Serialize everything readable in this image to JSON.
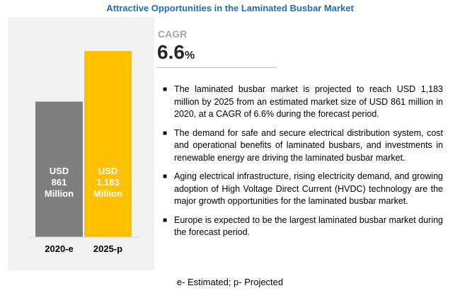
{
  "title": "Attractive Opportunities in the Laminated Busbar Market",
  "cagr": {
    "label": "CAGR",
    "value": "6.6",
    "unit": "%"
  },
  "bullets": [
    "The laminated busbar market is projected to reach USD 1,183 million by 2025 from an estimated market size of USD 861 million in 2020, at a CAGR of 6.6% during the forecast period.",
    "The demand for safe and secure electrical distribution system, cost and operational benefits of laminated busbars, and investments in renewable energy are driving the laminated busbar market.",
    "Aging electrical infrastructure, rising electricity demand, and growing adoption of High Voltage Direct Current (HVDC) technology are the major growth opportunities for the laminated busbar market.",
    "Europe is expected to be the largest laminated busbar market during the forecast period."
  ],
  "footnote": "e- Estimated; p- Projected",
  "colors": {
    "bar_2020": "#7f7f7f",
    "bar_2025": "#ffc000",
    "title": "#1f6fb2"
  },
  "chart_data": {
    "type": "bar",
    "categories": [
      "2020-e",
      "2025-p"
    ],
    "values": [
      861,
      1183
    ],
    "data_labels": [
      [
        "USD",
        "861",
        "Million"
      ],
      [
        "USD",
        "1,183",
        "Million"
      ]
    ],
    "colors": [
      "#7f7f7f",
      "#ffc000"
    ],
    "ylim": [
      0,
      1183
    ],
    "grid": false
  }
}
